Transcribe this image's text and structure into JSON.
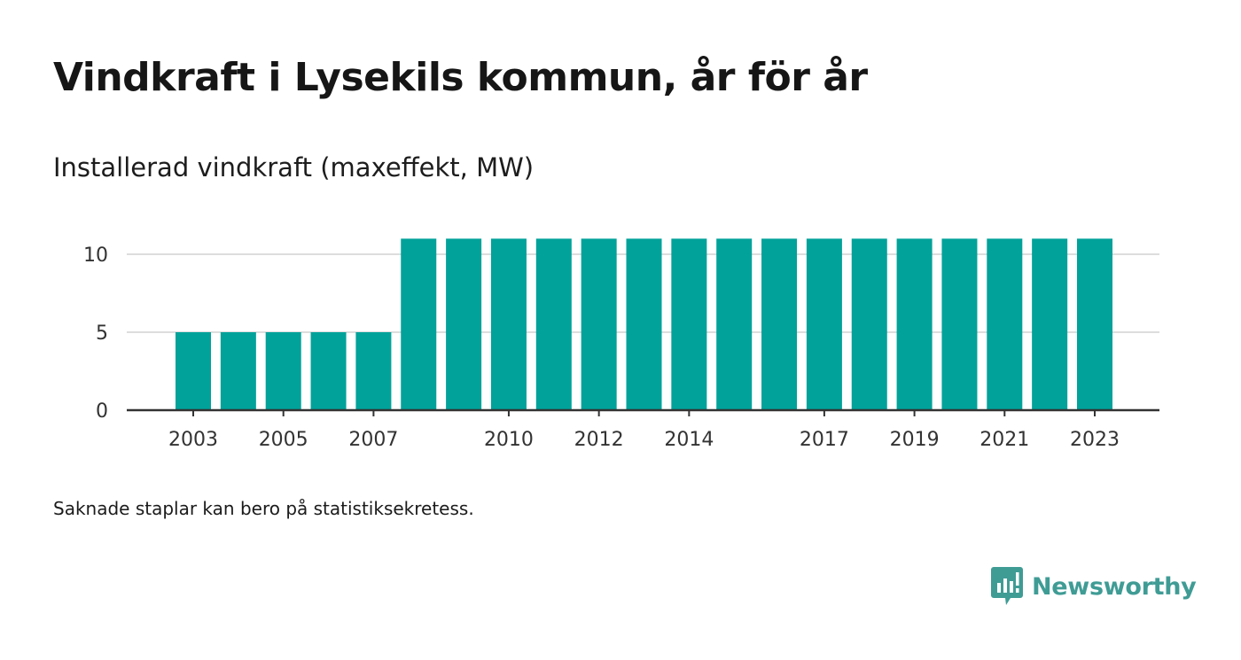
{
  "title": "Vindkraft i Lysekils kommun, år för år",
  "subtitle": "Installerad vindkraft (maxeffekt, MW)",
  "footnote": "Saknade staplar kan bero på statistiksekretess.",
  "brand": {
    "name": "Newsworthy",
    "icon": "newsworthy-logo-icon",
    "color": "#3f9c95"
  },
  "chart_data": {
    "type": "bar",
    "title": "Vindkraft i Lysekils kommun, år för år",
    "subtitle": "Installerad vindkraft (maxeffekt, MW)",
    "categories": [
      "2003",
      "2004",
      "2005",
      "2006",
      "2007",
      "2008",
      "2009",
      "2010",
      "2011",
      "2012",
      "2013",
      "2014",
      "2015",
      "2016",
      "2017",
      "2018",
      "2019",
      "2020",
      "2021",
      "2022",
      "2023"
    ],
    "values": [
      5,
      5,
      5,
      5,
      5,
      11,
      11,
      11,
      11,
      11,
      11,
      11,
      11,
      11,
      11,
      11,
      11,
      11,
      11,
      11,
      11
    ],
    "x_tick_labels": [
      "2003",
      "2005",
      "2007",
      "2010",
      "2012",
      "2014",
      "2017",
      "2019",
      "2021",
      "2023"
    ],
    "y_ticks": [
      0,
      5,
      10
    ],
    "ylim": [
      0,
      11
    ],
    "xlabel": "",
    "ylabel": "",
    "grid": true,
    "bar_color": "#00a29a",
    "grid_color": "#dddddd",
    "axis_color": "#333333"
  }
}
